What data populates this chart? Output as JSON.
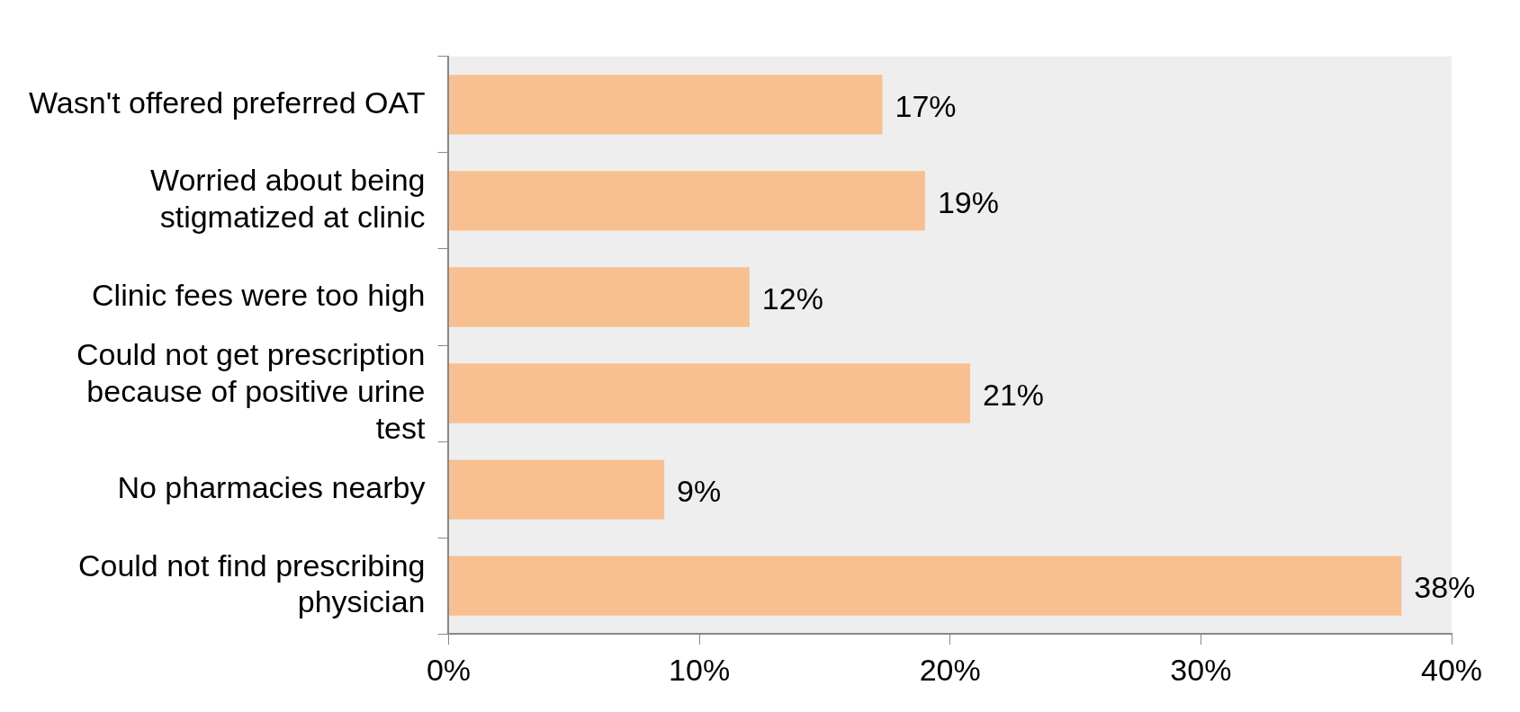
{
  "chart_data": {
    "type": "bar",
    "orientation": "horizontal",
    "categories": [
      "Wasn't offered preferred OAT",
      "Worried about being stigmatized at clinic",
      "Clinic fees were too high",
      "Could not get prescription because of positive urine test",
      "No pharmacies nearby",
      "Could not find prescribing physician"
    ],
    "values": [
      17.3,
      19,
      12,
      20.8,
      8.6,
      38
    ],
    "value_labels": [
      "17%",
      "19%",
      "12%",
      "21%",
      "9%",
      "38%"
    ],
    "color": "#f8c090",
    "xlim": [
      0,
      40
    ],
    "xticks": [
      {
        "value": 0,
        "label": "0%"
      },
      {
        "value": 10,
        "label": "10%"
      },
      {
        "value": 20,
        "label": "20%"
      },
      {
        "value": 30,
        "label": "30%"
      },
      {
        "value": 40,
        "label": "40%"
      }
    ],
    "grid": false,
    "legend": false
  }
}
